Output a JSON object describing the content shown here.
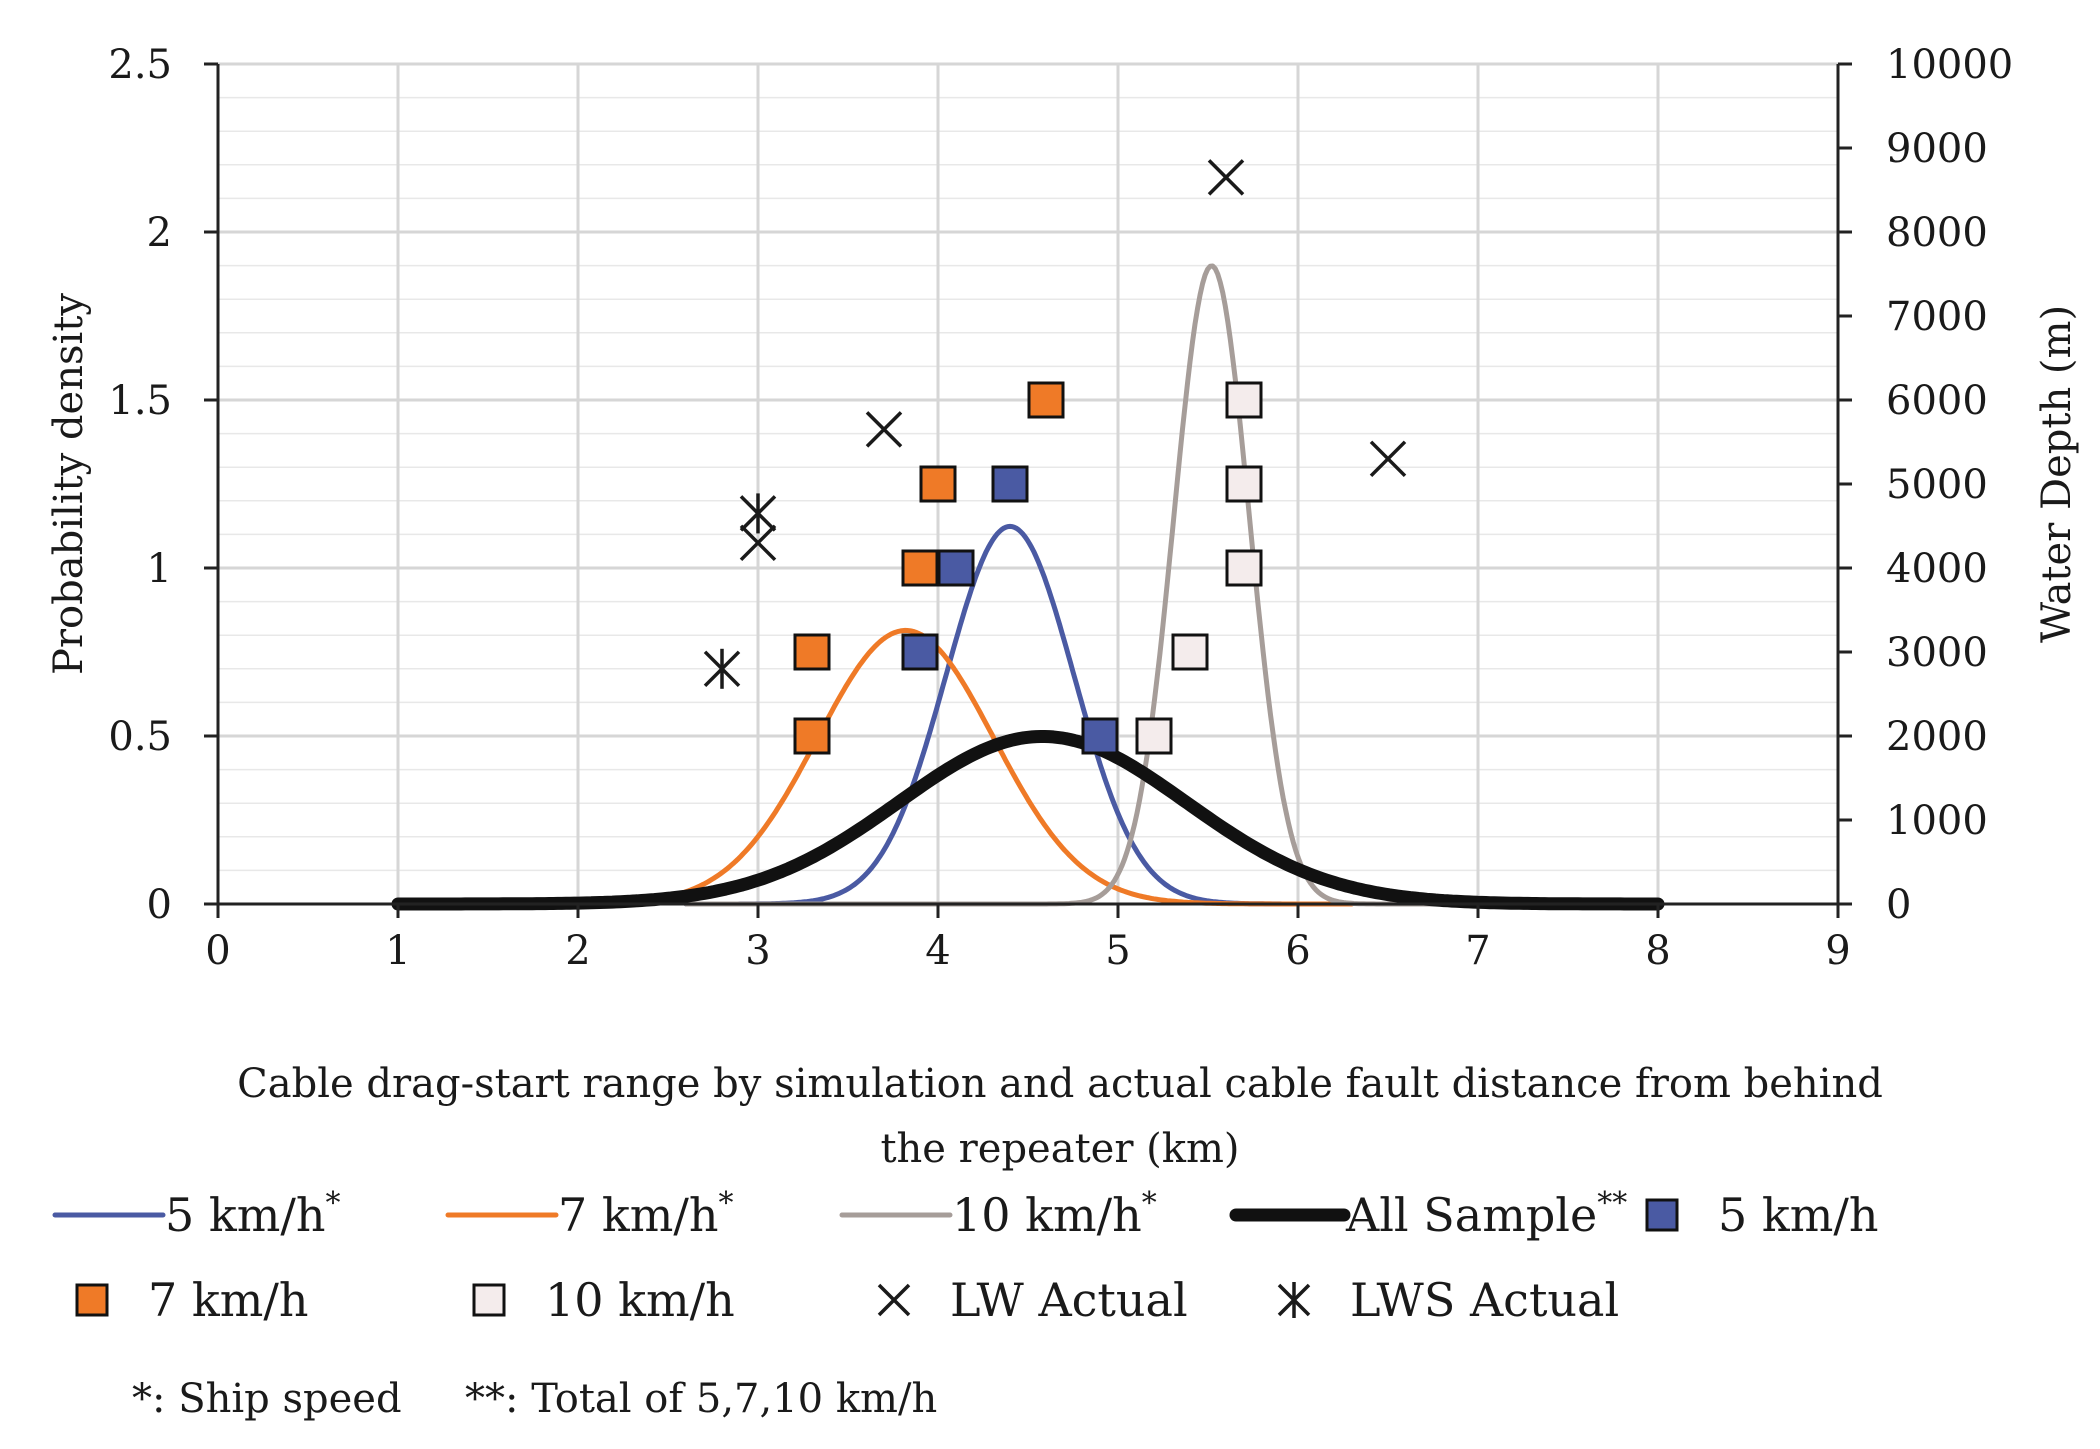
{
  "chart_data": {
    "type": "line",
    "xlabel_lines": [
      "Cable drag-start range by simulation and actual cable fault distance from behind",
      "the repeater (km)"
    ],
    "ylabel": "Probability density",
    "y2label": "Water Depth (m)",
    "xlim": [
      0,
      9
    ],
    "ylim": [
      0,
      2.5
    ],
    "y2lim": [
      0,
      10000
    ],
    "x_ticks": [
      0,
      1,
      2,
      3,
      4,
      5,
      6,
      7,
      8,
      9
    ],
    "y_ticks": [
      "0",
      "0.5",
      "1",
      "1.5",
      "2",
      "2.5"
    ],
    "y_tick_values": [
      0,
      0.5,
      1,
      1.5,
      2,
      2.5
    ],
    "y2_ticks": [
      "0",
      "1000",
      "2000",
      "3000",
      "4000",
      "5000",
      "6000",
      "7000",
      "8000",
      "9000",
      "10000"
    ],
    "y2_tick_values": [
      0,
      1000,
      2000,
      3000,
      4000,
      5000,
      6000,
      7000,
      8000,
      9000,
      10000
    ],
    "grid": true,
    "series": [
      {
        "name": "5 km/h",
        "sup": "*",
        "kind": "normal",
        "axis": "y",
        "mean": 4.4,
        "sd": 0.355,
        "color": "#4a5aa3",
        "x_range": [
          2.6,
          6.2
        ]
      },
      {
        "name": "7 km/h",
        "sup": "*",
        "kind": "normal",
        "axis": "y",
        "mean": 3.82,
        "sd": 0.49,
        "color": "#ef7a27",
        "x_range": [
          2.5,
          6.3
        ]
      },
      {
        "name": "10 km/h",
        "sup": "*",
        "kind": "normal",
        "axis": "y",
        "mean": 5.52,
        "sd": 0.21,
        "color": "#a69d99",
        "x_range": [
          2.6,
          6.8
        ]
      },
      {
        "name": "All Sample",
        "sup": "**",
        "kind": "normal",
        "axis": "y",
        "mean": 4.58,
        "sd": 0.8,
        "color": "#111111",
        "x_range": [
          1,
          8
        ]
      },
      {
        "name": "5 km/h",
        "kind": "square",
        "axis": "y2",
        "color": "#4a5aa3",
        "points": [
          [
            3.9,
            3000
          ],
          [
            4.1,
            4000
          ],
          [
            4.4,
            5000
          ],
          [
            4.9,
            2000
          ]
        ]
      },
      {
        "name": "7 km/h",
        "kind": "square",
        "axis": "y2",
        "color": "#ef7a27",
        "points": [
          [
            3.3,
            2000
          ],
          [
            3.3,
            3000
          ],
          [
            3.9,
            4000
          ],
          [
            4.0,
            5000
          ],
          [
            4.6,
            6000
          ]
        ]
      },
      {
        "name": "10 km/h",
        "kind": "square",
        "axis": "y2",
        "color": "#f4ecec",
        "points": [
          [
            5.2,
            2000
          ],
          [
            5.4,
            3000
          ],
          [
            5.7,
            4000
          ],
          [
            5.7,
            5000
          ],
          [
            5.7,
            6000
          ]
        ]
      },
      {
        "name": "LW Actual",
        "kind": "x",
        "axis": "y2",
        "color": "#1a1a1a",
        "points": [
          [
            3.0,
            4300
          ],
          [
            3.7,
            5650
          ],
          [
            5.6,
            8650
          ],
          [
            6.5,
            5300
          ]
        ]
      },
      {
        "name": "LWS Actual",
        "kind": "star",
        "axis": "y2",
        "color": "#1a1a1a",
        "points": [
          [
            2.8,
            2800
          ],
          [
            3.0,
            4650
          ]
        ]
      }
    ],
    "footnotes": [
      "*: Ship speed",
      "**: Total of 5,7,10 km/h"
    ]
  }
}
